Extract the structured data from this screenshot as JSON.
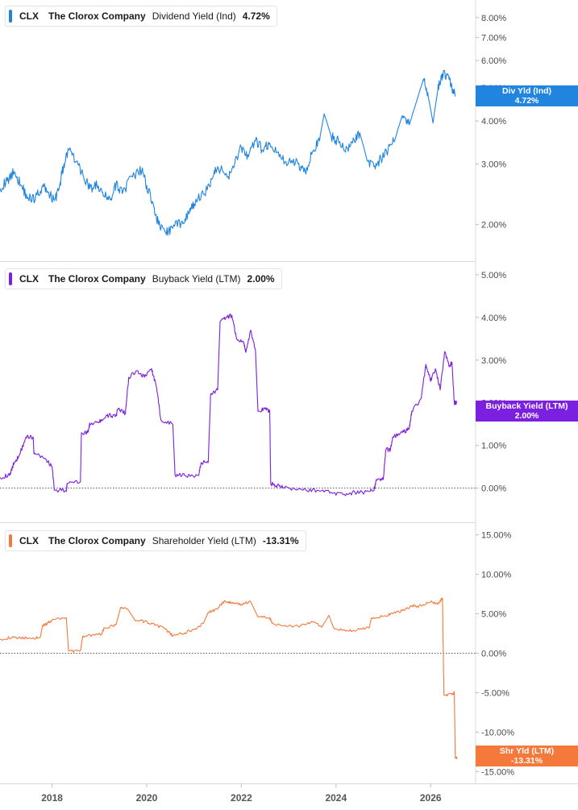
{
  "chart_data": {
    "type": "line",
    "x_axis": {
      "ticks": [
        "2018",
        "2020",
        "2022",
        "2024",
        "2026"
      ],
      "range": [
        2016.9,
        2026.95
      ]
    },
    "panels": [
      {
        "ticker": "CLX",
        "company": "The Clorox Company",
        "metric": "Dividend Yield (Ind)",
        "last_value": "4.72%",
        "tag_label": "Div Yld (Ind)",
        "tag_value": "4.72%",
        "color": "#2185e0",
        "scale": "log",
        "y_range": [
          1.6,
          9.0
        ],
        "y_ticks": [
          "8.00%",
          "7.00%",
          "6.00%",
          "5.00%",
          "4.00%",
          "3.00%",
          "2.00%"
        ],
        "y_tick_values": [
          8,
          7,
          6,
          5,
          4,
          3,
          2
        ],
        "zero_line": false,
        "points": [
          [
            2016.9,
            2.55
          ],
          [
            2017.05,
            2.68
          ],
          [
            2017.2,
            2.85
          ],
          [
            2017.35,
            2.6
          ],
          [
            2017.5,
            2.38
          ],
          [
            2017.65,
            2.4
          ],
          [
            2017.8,
            2.58
          ],
          [
            2017.9,
            2.5
          ],
          [
            2018.05,
            2.35
          ],
          [
            2018.15,
            2.55
          ],
          [
            2018.25,
            3.0
          ],
          [
            2018.35,
            3.3
          ],
          [
            2018.5,
            3.05
          ],
          [
            2018.65,
            2.8
          ],
          [
            2018.8,
            2.55
          ],
          [
            2018.95,
            2.6
          ],
          [
            2019.1,
            2.42
          ],
          [
            2019.25,
            2.38
          ],
          [
            2019.35,
            2.6
          ],
          [
            2019.5,
            2.5
          ],
          [
            2019.7,
            2.75
          ],
          [
            2019.9,
            2.88
          ],
          [
            2020.0,
            2.6
          ],
          [
            2020.15,
            2.25
          ],
          [
            2020.25,
            2.0
          ],
          [
            2020.4,
            1.9
          ],
          [
            2020.55,
            1.95
          ],
          [
            2020.75,
            2.05
          ],
          [
            2020.9,
            2.15
          ],
          [
            2021.0,
            2.3
          ],
          [
            2021.2,
            2.45
          ],
          [
            2021.4,
            2.75
          ],
          [
            2021.5,
            2.95
          ],
          [
            2021.7,
            2.75
          ],
          [
            2021.8,
            2.9
          ],
          [
            2022.0,
            3.35
          ],
          [
            2022.15,
            3.15
          ],
          [
            2022.3,
            3.5
          ],
          [
            2022.45,
            3.3
          ],
          [
            2022.6,
            3.45
          ],
          [
            2022.8,
            3.15
          ],
          [
            2023.0,
            3.05
          ],
          [
            2023.2,
            3.0
          ],
          [
            2023.35,
            2.85
          ],
          [
            2023.5,
            3.25
          ],
          [
            2023.65,
            3.5
          ],
          [
            2023.75,
            4.2
          ],
          [
            2023.9,
            3.6
          ],
          [
            2024.05,
            3.5
          ],
          [
            2024.2,
            3.25
          ],
          [
            2024.35,
            3.45
          ],
          [
            2024.5,
            3.7
          ],
          [
            2024.65,
            3.1
          ],
          [
            2024.8,
            2.95
          ],
          [
            2024.95,
            3.1
          ],
          [
            2025.1,
            3.3
          ],
          [
            2025.25,
            3.55
          ],
          [
            2025.4,
            4.15
          ],
          [
            2025.55,
            3.9
          ],
          [
            2025.7,
            4.55
          ],
          [
            2025.85,
            5.3
          ],
          [
            2025.95,
            4.7
          ],
          [
            2026.05,
            3.95
          ],
          [
            2026.15,
            4.9
          ],
          [
            2026.25,
            5.5
          ],
          [
            2026.35,
            5.45
          ],
          [
            2026.45,
            5.0
          ],
          [
            2026.52,
            4.72
          ]
        ]
      },
      {
        "ticker": "CLX",
        "company": "The Clorox Company",
        "metric": "Buyback Yield (LTM)",
        "last_value": "2.00%",
        "tag_label": "Buyback Yield (LTM)",
        "tag_value": "2.00%",
        "color": "#7b1fe0",
        "scale": "linear",
        "y_range": [
          -0.8,
          5.3
        ],
        "y_ticks": [
          "5.00%",
          "4.00%",
          "3.00%",
          "2.00%",
          "1.00%",
          "0.00%"
        ],
        "y_tick_values": [
          5,
          4,
          3,
          2,
          1,
          0
        ],
        "zero_line": true,
        "points": [
          [
            2016.9,
            0.25
          ],
          [
            2017.1,
            0.3
          ],
          [
            2017.2,
            0.6
          ],
          [
            2017.3,
            0.75
          ],
          [
            2017.45,
            1.2
          ],
          [
            2017.6,
            1.2
          ],
          [
            2017.62,
            0.8
          ],
          [
            2017.85,
            0.7
          ],
          [
            2018.0,
            0.5
          ],
          [
            2018.05,
            -0.05
          ],
          [
            2018.3,
            -0.05
          ],
          [
            2018.32,
            0.1
          ],
          [
            2018.6,
            0.15
          ],
          [
            2018.62,
            1.3
          ],
          [
            2018.75,
            1.3
          ],
          [
            2018.8,
            1.5
          ],
          [
            2019.0,
            1.55
          ],
          [
            2019.05,
            1.6
          ],
          [
            2019.2,
            1.7
          ],
          [
            2019.35,
            1.7
          ],
          [
            2019.4,
            1.85
          ],
          [
            2019.55,
            1.75
          ],
          [
            2019.62,
            2.6
          ],
          [
            2019.8,
            2.75
          ],
          [
            2019.95,
            2.6
          ],
          [
            2020.1,
            2.8
          ],
          [
            2020.2,
            2.4
          ],
          [
            2020.3,
            1.6
          ],
          [
            2020.55,
            1.5
          ],
          [
            2020.6,
            0.3
          ],
          [
            2020.8,
            0.3
          ],
          [
            2021.1,
            0.3
          ],
          [
            2021.15,
            0.6
          ],
          [
            2021.3,
            0.6
          ],
          [
            2021.35,
            2.2
          ],
          [
            2021.5,
            2.3
          ],
          [
            2021.55,
            3.9
          ],
          [
            2021.7,
            4.0
          ],
          [
            2021.8,
            4.05
          ],
          [
            2021.9,
            3.5
          ],
          [
            2022.05,
            3.4
          ],
          [
            2022.1,
            3.2
          ],
          [
            2022.2,
            3.7
          ],
          [
            2022.3,
            3.2
          ],
          [
            2022.35,
            1.8
          ],
          [
            2022.5,
            1.85
          ],
          [
            2022.6,
            1.8
          ],
          [
            2022.62,
            0.1
          ],
          [
            2022.8,
            0.05
          ],
          [
            2022.9,
            0.0
          ],
          [
            2023.3,
            -0.05
          ],
          [
            2023.6,
            -0.05
          ],
          [
            2023.9,
            -0.1
          ],
          [
            2024.15,
            -0.15
          ],
          [
            2024.4,
            -0.1
          ],
          [
            2024.6,
            -0.1
          ],
          [
            2024.8,
            -0.05
          ],
          [
            2024.85,
            0.2
          ],
          [
            2025.0,
            0.2
          ],
          [
            2025.05,
            0.9
          ],
          [
            2025.15,
            0.9
          ],
          [
            2025.2,
            1.2
          ],
          [
            2025.4,
            1.3
          ],
          [
            2025.55,
            1.4
          ],
          [
            2025.6,
            1.8
          ],
          [
            2025.8,
            2.1
          ],
          [
            2025.9,
            2.9
          ],
          [
            2026.0,
            2.5
          ],
          [
            2026.1,
            2.8
          ],
          [
            2026.2,
            2.3
          ],
          [
            2026.3,
            3.2
          ],
          [
            2026.4,
            2.85
          ],
          [
            2026.45,
            2.95
          ],
          [
            2026.5,
            2.0
          ],
          [
            2026.55,
            2.0
          ]
        ]
      },
      {
        "ticker": "CLX",
        "company": "The Clorox Company",
        "metric": "Shareholder Yield (LTM)",
        "last_value": "-13.31%",
        "tag_label": "Shr Yld (LTM)",
        "tag_value": "-13.31%",
        "color": "#f5793a",
        "scale": "linear",
        "y_range": [
          -16.5,
          16.5
        ],
        "y_ticks": [
          "15.00%",
          "10.00%",
          "5.00%",
          "0.00%",
          "-5.00%",
          "-10.00%",
          "-15.00%"
        ],
        "y_tick_values": [
          15,
          10,
          5,
          0,
          -5,
          -10,
          -15
        ],
        "zero_line": true,
        "points": [
          [
            2016.9,
            1.8
          ],
          [
            2017.2,
            2.0
          ],
          [
            2017.5,
            1.9
          ],
          [
            2017.75,
            2.0
          ],
          [
            2017.8,
            3.5
          ],
          [
            2017.9,
            3.8
          ],
          [
            2018.0,
            4.2
          ],
          [
            2018.3,
            4.5
          ],
          [
            2018.35,
            0.3
          ],
          [
            2018.6,
            0.3
          ],
          [
            2018.65,
            2.2
          ],
          [
            2018.9,
            2.3
          ],
          [
            2019.05,
            2.4
          ],
          [
            2019.1,
            3.2
          ],
          [
            2019.35,
            3.6
          ],
          [
            2019.45,
            5.8
          ],
          [
            2019.6,
            5.6
          ],
          [
            2019.75,
            4.2
          ],
          [
            2019.95,
            4.0
          ],
          [
            2020.2,
            3.6
          ],
          [
            2020.4,
            3.0
          ],
          [
            2020.55,
            2.2
          ],
          [
            2020.8,
            2.6
          ],
          [
            2021.0,
            3.0
          ],
          [
            2021.2,
            3.8
          ],
          [
            2021.3,
            5.2
          ],
          [
            2021.5,
            5.6
          ],
          [
            2021.65,
            6.7
          ],
          [
            2021.8,
            6.3
          ],
          [
            2022.0,
            6.2
          ],
          [
            2022.2,
            6.5
          ],
          [
            2022.35,
            4.6
          ],
          [
            2022.6,
            4.5
          ],
          [
            2022.65,
            3.8
          ],
          [
            2022.9,
            3.5
          ],
          [
            2023.2,
            3.4
          ],
          [
            2023.5,
            4.0
          ],
          [
            2023.7,
            3.3
          ],
          [
            2023.85,
            4.8
          ],
          [
            2023.95,
            3.2
          ],
          [
            2024.2,
            2.8
          ],
          [
            2024.45,
            3.0
          ],
          [
            2024.7,
            3.2
          ],
          [
            2024.75,
            4.5
          ],
          [
            2025.0,
            4.7
          ],
          [
            2025.2,
            5.0
          ],
          [
            2025.4,
            5.4
          ],
          [
            2025.6,
            6.0
          ],
          [
            2025.8,
            6.0
          ],
          [
            2026.0,
            6.5
          ],
          [
            2026.15,
            6.2
          ],
          [
            2026.25,
            7.0
          ],
          [
            2026.28,
            -5.3
          ],
          [
            2026.45,
            -5.2
          ],
          [
            2026.5,
            -5.0
          ],
          [
            2026.52,
            -13.3
          ],
          [
            2026.56,
            -13.31
          ]
        ]
      }
    ]
  }
}
